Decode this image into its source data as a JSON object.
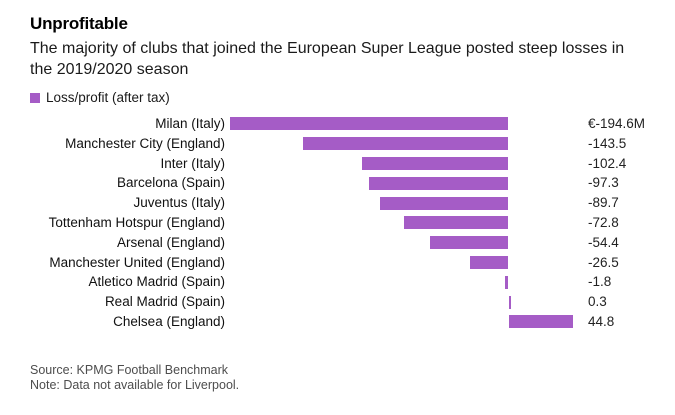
{
  "chart_data": {
    "type": "bar",
    "orientation": "horizontal",
    "title": "Unprofitable",
    "subtitle": "The majority of clubs that joined the European Super League posted steep losses in the 2019/2020 season",
    "legend": {
      "label": "Loss/profit (after tax)",
      "position": "top-left"
    },
    "categories": [
      "Milan (Italy)",
      "Manchester City (England)",
      "Inter (Italy)",
      "Barcelona (Spain)",
      "Juventus (Italy)",
      "Tottenham Hotspur (England)",
      "Arsenal (England)",
      "Manchester United (England)",
      "Atletico Madrid (Spain)",
      "Real Madrid (Spain)",
      "Chelsea (England)"
    ],
    "values": [
      -194.6,
      -143.5,
      -102.4,
      -97.3,
      -89.7,
      -72.8,
      -54.4,
      -26.5,
      -1.8,
      0.3,
      44.8
    ],
    "value_labels": [
      "€-194.6M",
      "-143.5",
      "-102.4",
      "-97.3",
      "-89.7",
      "-72.8",
      "-54.4",
      "-26.5",
      "-1.8",
      "0.3",
      "44.8"
    ],
    "unit": "EUR millions",
    "baseline": 0,
    "xlim": [
      -194.6,
      44.8
    ],
    "grid": "off",
    "bar_color": "#a55cc6",
    "source": "Source: KPMG Football Benchmark",
    "note": "Note: Data not available for Liverpool."
  }
}
